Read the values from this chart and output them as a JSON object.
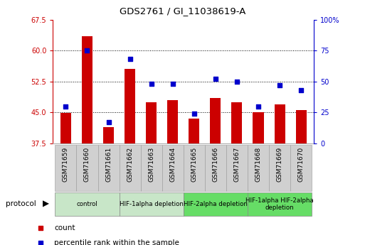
{
  "title": "GDS2761 / GI_11038619-A",
  "samples": [
    "GSM71659",
    "GSM71660",
    "GSM71661",
    "GSM71662",
    "GSM71663",
    "GSM71664",
    "GSM71665",
    "GSM71666",
    "GSM71667",
    "GSM71668",
    "GSM71669",
    "GSM71670"
  ],
  "counts": [
    44.8,
    63.5,
    41.5,
    55.5,
    47.5,
    48.0,
    43.5,
    48.5,
    47.5,
    45.0,
    47.0,
    45.5
  ],
  "percentiles": [
    30,
    75,
    17,
    68,
    48,
    48,
    24,
    52,
    50,
    30,
    47,
    43
  ],
  "ylim_left": [
    37.5,
    67.5
  ],
  "ylim_right": [
    0,
    100
  ],
  "yticks_left": [
    37.5,
    45.0,
    52.5,
    60.0,
    67.5
  ],
  "yticks_right": [
    0,
    25,
    50,
    75,
    100
  ],
  "bar_color": "#cc0000",
  "dot_color": "#0000cc",
  "protocol_groups": [
    {
      "label": "control",
      "start": 0,
      "end": 2,
      "color": "#c8e6c8"
    },
    {
      "label": "HIF-1alpha depletion",
      "start": 3,
      "end": 5,
      "color": "#c8e6c8"
    },
    {
      "label": "HIF-2alpha depletion",
      "start": 6,
      "end": 8,
      "color": "#66dd66"
    },
    {
      "label": "HIF-1alpha HIF-2alpha\ndepletion",
      "start": 9,
      "end": 11,
      "color": "#66dd66"
    }
  ],
  "left_axis_color": "#cc0000",
  "right_axis_color": "#0000cc",
  "bg_color": "#ffffff",
  "tickbox_color": "#d0d0d0",
  "tickbox_edge": "#999999"
}
